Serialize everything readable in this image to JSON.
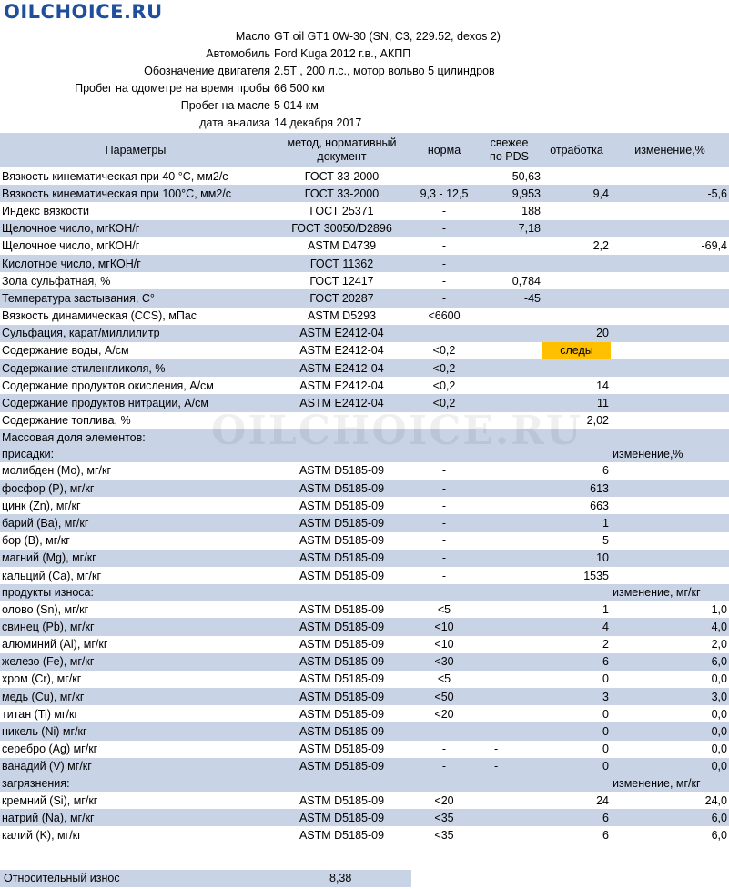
{
  "logo": "OILCHOICE.RU",
  "watermark": "OILCHOICE.RU",
  "meta": [
    {
      "label": "Масло",
      "value": "GT oil GT1 0W-30 (SN, C3, 229.52, dexos 2)"
    },
    {
      "label": "Автомобиль",
      "value": "Ford Kuga 2012 г.в., АКПП"
    },
    {
      "label": "Обозначение двигателя",
      "value": "2.5T , 200 л.с., мотор вольво 5 цилиндров"
    },
    {
      "label": "Пробег на одометре на время пробы",
      "value": "66 500 км"
    },
    {
      "label": "Пробег на масле",
      "value": "5 014 км"
    },
    {
      "label": "дата анализа",
      "value": "14 декабря 2017"
    }
  ],
  "header": {
    "param": "Параметры",
    "method_l1": "метод, нормативный",
    "method_l2": "документ",
    "norm": "норма",
    "fresh_l1": "свежее",
    "fresh_l2": "по PDS",
    "used": "отработка",
    "change": "изменение,%"
  },
  "rows": [
    {
      "p": "Вязкость кинематическая при 40 °С, мм2/с",
      "m": "ГОСТ 33-2000",
      "n": "-",
      "f": "50,63",
      "u": "",
      "c": ""
    },
    {
      "p": "Вязкость кинематическая при 100°С, мм2/с",
      "m": "ГОСТ 33-2000",
      "n": "9,3 - 12,5",
      "f": "9,953",
      "u": "9,4",
      "c": "-5,6"
    },
    {
      "p": "Индекс вязкости",
      "m": "ГОСТ 25371",
      "n": "-",
      "f": "188",
      "u": "",
      "c": ""
    },
    {
      "p": "Щелочное число, мгКОН/г",
      "m": "ГОСТ 30050/D2896",
      "n": "-",
      "f": "7,18",
      "u": "",
      "c": ""
    },
    {
      "p": "Щелочное число, мгКОН/г",
      "m": "ASTM D4739",
      "n": "-",
      "f": "",
      "u": "2,2",
      "c": "-69,4"
    },
    {
      "p": "Кислотное число, мгКОН/г",
      "m": "ГОСТ 11362",
      "n": "-",
      "f": "",
      "u": "",
      "c": ""
    },
    {
      "p": "Зола сульфатная, %",
      "m": "ГОСТ 12417",
      "n": "-",
      "f": "0,784",
      "u": "",
      "c": ""
    },
    {
      "p": "Температура застывания, С°",
      "m": "ГОСТ 20287",
      "n": "-",
      "f": "-45",
      "u": "",
      "c": ""
    },
    {
      "p": "Вязкость динамическая (CCS), мПас",
      "m": "ASTM D5293",
      "n": "<6600",
      "f": "",
      "u": "",
      "c": ""
    },
    {
      "p": "Сульфация,  карат/миллилитр",
      "m": "ASTM E2412-04",
      "n": "",
      "f": "",
      "u": "20",
      "c": ""
    },
    {
      "p": "Содержание воды, А/см",
      "m": "ASTM E2412-04",
      "n": "<0,2",
      "f": "",
      "u": "следы",
      "c": ""
    },
    {
      "p": "Содержание этиленгликоля, %",
      "m": "ASTM E2412-04",
      "n": "<0,2",
      "f": "",
      "u": "",
      "c": ""
    },
    {
      "p": "Содержание продуктов окисления, А/см",
      "m": "ASTM E2412-04",
      "n": "<0,2",
      "f": "",
      "u": "14",
      "c": ""
    },
    {
      "p": "Содержание продуктов нитрации, А/см",
      "m": "ASTM E2412-04",
      "n": "<0,2",
      "f": "",
      "u": "11",
      "c": ""
    },
    {
      "p": "Содержание топлива, %",
      "m": "",
      "n": "",
      "f": "",
      "u": "2,02",
      "c": ""
    }
  ],
  "mass_title": "Массовая доля элементов:",
  "additives": {
    "title": "присадки:",
    "change": "изменение,%",
    "rows": [
      {
        "p": "молибден (Mo), мг/кг",
        "m": "ASTM D5185-09",
        "n": "-",
        "u": "6",
        "c": ""
      },
      {
        "p": "фосфор (P), мг/кг",
        "m": "ASTM D5185-09",
        "n": "-",
        "u": "613",
        "c": ""
      },
      {
        "p": "цинк (Zn), мг/кг",
        "m": "ASTM D5185-09",
        "n": "-",
        "u": "663",
        "c": ""
      },
      {
        "p": "барий (Ba), мг/кг",
        "m": "ASTM D5185-09",
        "n": "-",
        "u": "1",
        "c": ""
      },
      {
        "p": "бор (B), мг/кг",
        "m": "ASTM D5185-09",
        "n": "-",
        "u": "5",
        "c": ""
      },
      {
        "p": "магний (Mg), мг/кг",
        "m": "ASTM D5185-09",
        "n": "-",
        "u": "10",
        "c": ""
      },
      {
        "p": "кальций (Ca), мг/кг",
        "m": "ASTM D5185-09",
        "n": "-",
        "u": "1535",
        "c": ""
      }
    ]
  },
  "wear": {
    "title": "продукты износа:",
    "change": "изменение, мг/кг",
    "rows": [
      {
        "p": "олово (Sn), мг/кг",
        "m": "ASTM D5185-09",
        "n": "<5",
        "f": "",
        "u": "1",
        "c": "1,0"
      },
      {
        "p": "свинец (Pb), мг/кг",
        "m": "ASTM D5185-09",
        "n": "<10",
        "f": "",
        "u": "4",
        "c": "4,0"
      },
      {
        "p": "алюминий (Al), мг/кг",
        "m": "ASTM D5185-09",
        "n": "<10",
        "f": "",
        "u": "2",
        "c": "2,0"
      },
      {
        "p": "железо (Fe), мг/кг",
        "m": "ASTM D5185-09",
        "n": "<30",
        "f": "",
        "u": "6",
        "c": "6,0"
      },
      {
        "p": "хром (Cr), мг/кг",
        "m": "ASTM D5185-09",
        "n": "<5",
        "f": "",
        "u": "0",
        "c": "0,0"
      },
      {
        "p": "медь (Cu), мг/кг",
        "m": "ASTM D5185-09",
        "n": "<50",
        "f": "",
        "u": "3",
        "c": "3,0"
      },
      {
        "p": "титан (Ti) мг/кг",
        "m": "ASTM D5185-09",
        "n": "<20",
        "f": "",
        "u": "0",
        "c": "0,0"
      },
      {
        "p": "никель (Ni) мг/кг",
        "m": "ASTM D5185-09",
        "n": "-",
        "f": "-",
        "u": "0",
        "c": "0,0"
      },
      {
        "p": "серебро (Ag) мг/кг",
        "m": "ASTM D5185-09",
        "n": "-",
        "f": "-",
        "u": "0",
        "c": "0,0"
      },
      {
        "p": "ванадий (V) мг/кг",
        "m": "ASTM D5185-09",
        "n": "-",
        "f": "-",
        "u": "0",
        "c": "0,0"
      }
    ]
  },
  "contamination": {
    "title": "загрязнения:",
    "change": "изменение, мг/кг",
    "rows": [
      {
        "p": "кремний (Si), мг/кг",
        "m": "ASTM D5185-09",
        "n": "<20",
        "u": "24",
        "c": "24,0"
      },
      {
        "p": "натрий (Na), мг/кг",
        "m": "ASTM D5185-09",
        "n": "<35",
        "u": "6",
        "c": "6,0"
      },
      {
        "p": "калий (K), мг/кг",
        "m": "ASTM D5185-09",
        "n": "<35",
        "u": "6",
        "c": "6,0"
      }
    ]
  },
  "footer": {
    "label": "Относительный износ",
    "value": "8,38"
  }
}
